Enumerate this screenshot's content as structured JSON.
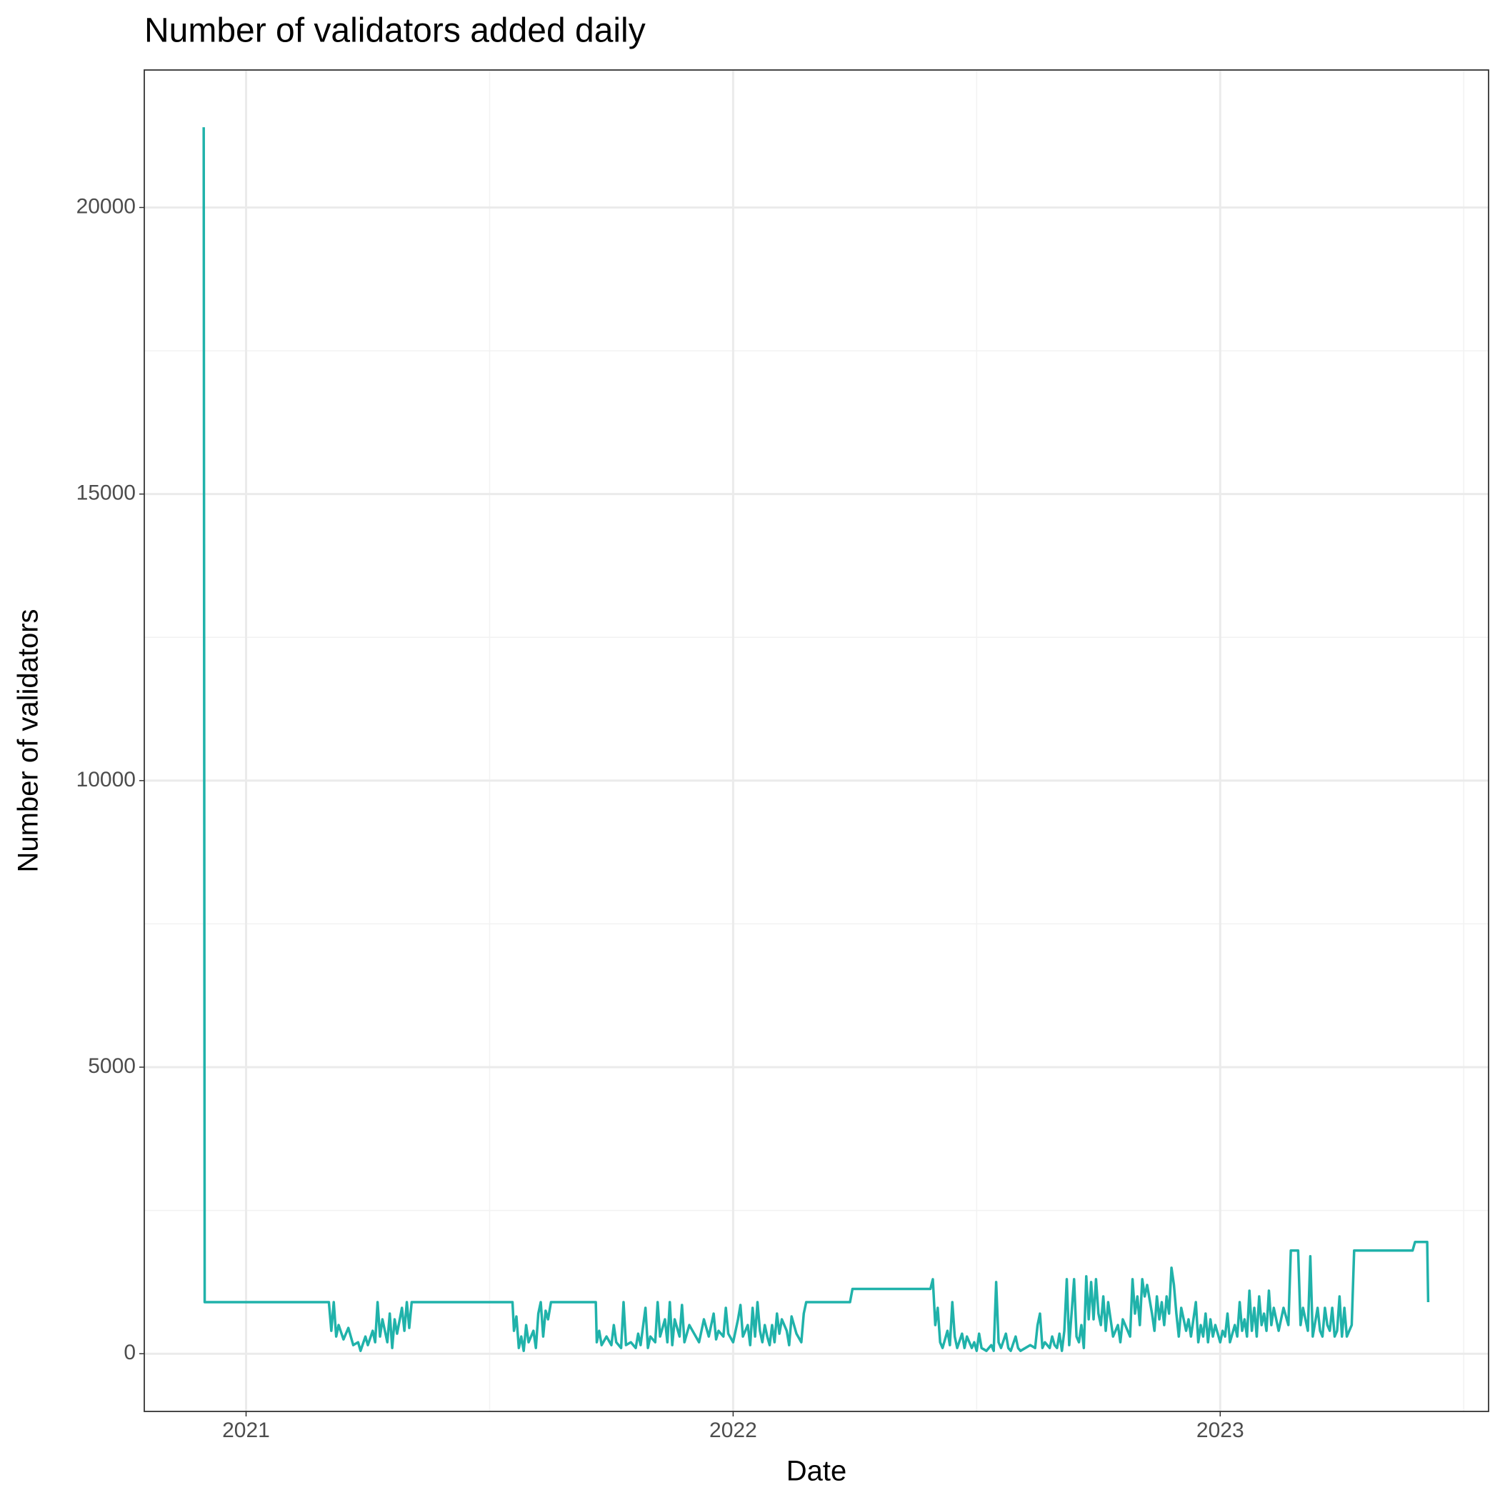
{
  "chart_data": {
    "type": "line",
    "title": "Number of validators added daily",
    "x_label": "Date",
    "y_label": "Number of validators",
    "color": "#20b2aa",
    "grid": true,
    "xlim": [
      2020.791,
      2023.551
    ],
    "xticks": [
      2021,
      2022,
      2023
    ],
    "ylim": [
      -1007,
      22399
    ],
    "yticks": [
      0,
      5000,
      10000,
      15000,
      20000
    ],
    "x": [
      2020.913,
      2020.915,
      2021.17,
      2021.175,
      2021.18,
      2021.185,
      2021.19,
      2021.2,
      2021.21,
      2021.22,
      2021.23,
      2021.235,
      2021.245,
      2021.25,
      2021.26,
      2021.265,
      2021.27,
      2021.275,
      2021.28,
      2021.29,
      2021.295,
      2021.3,
      2021.305,
      2021.31,
      2021.32,
      2021.325,
      2021.33,
      2021.335,
      2021.34,
      2021.547,
      2021.55,
      2021.555,
      2021.56,
      2021.565,
      2021.57,
      2021.575,
      2021.58,
      2021.59,
      2021.595,
      2021.6,
      2021.605,
      2021.61,
      2021.615,
      2021.62,
      2021.626,
      2021.718,
      2021.72,
      2021.725,
      2021.73,
      2021.74,
      2021.75,
      2021.755,
      2021.76,
      2021.77,
      2021.775,
      2021.78,
      2021.79,
      2021.8,
      2021.805,
      2021.81,
      2021.82,
      2021.825,
      2021.83,
      2021.84,
      2021.845,
      2021.85,
      2021.86,
      2021.865,
      2021.87,
      2021.875,
      2021.88,
      2021.89,
      2021.895,
      2021.9,
      2021.91,
      2021.92,
      2021.93,
      2021.94,
      2021.95,
      2021.96,
      2021.965,
      2021.97,
      2021.98,
      2021.985,
      2021.99,
      2022.0,
      2022.005,
      2022.01,
      2022.015,
      2022.02,
      2022.03,
      2022.035,
      2022.04,
      2022.045,
      2022.05,
      2022.055,
      2022.06,
      2022.065,
      2022.07,
      2022.075,
      2022.08,
      2022.085,
      2022.09,
      2022.095,
      2022.1,
      2022.11,
      2022.115,
      2022.12,
      2022.13,
      2022.14,
      2022.145,
      2022.15,
      2022.24,
      2022.245,
      2022.405,
      2022.41,
      2022.415,
      2022.42,
      2022.425,
      2022.43,
      2022.44,
      2022.445,
      2022.45,
      2022.455,
      2022.46,
      2022.47,
      2022.475,
      2022.48,
      2022.49,
      2022.495,
      2022.5,
      2022.505,
      2022.51,
      2022.52,
      2022.53,
      2022.535,
      2022.54,
      2022.545,
      2022.55,
      2022.56,
      2022.565,
      2022.57,
      2022.58,
      2022.585,
      2022.59,
      2022.6,
      2022.61,
      2022.62,
      2022.625,
      2022.63,
      2022.635,
      2022.64,
      2022.65,
      2022.655,
      2022.66,
      2022.665,
      2022.67,
      2022.675,
      2022.68,
      2022.685,
      2022.69,
      2022.7,
      2022.705,
      2022.71,
      2022.715,
      2022.72,
      2022.725,
      2022.73,
      2022.735,
      2022.74,
      2022.745,
      2022.75,
      2022.755,
      2022.76,
      2022.765,
      2022.77,
      2022.775,
      2022.78,
      2022.79,
      2022.795,
      2022.8,
      2022.81,
      2022.815,
      2022.82,
      2022.825,
      2022.83,
      2022.835,
      2022.84,
      2022.845,
      2022.85,
      2022.86,
      2022.865,
      2022.87,
      2022.875,
      2022.88,
      2022.885,
      2022.89,
      2022.895,
      2022.9,
      2022.905,
      2022.91,
      2022.915,
      2022.92,
      2022.93,
      2022.935,
      2022.94,
      2022.95,
      2022.955,
      2022.96,
      2022.965,
      2022.97,
      2022.975,
      2022.98,
      2022.985,
      2022.99,
      2023.0,
      2023.005,
      2023.01,
      2023.015,
      2023.02,
      2023.03,
      2023.035,
      2023.04,
      2023.045,
      2023.05,
      2023.055,
      2023.06,
      2023.065,
      2023.07,
      2023.075,
      2023.08,
      2023.085,
      2023.09,
      2023.095,
      2023.1,
      2023.105,
      2023.11,
      2023.12,
      2023.13,
      2023.14,
      2023.145,
      2023.16,
      2023.165,
      2023.17,
      2023.175,
      2023.18,
      2023.185,
      2023.19,
      2023.2,
      2023.205,
      2023.21,
      2023.215,
      2023.22,
      2023.225,
      2023.23,
      2023.235,
      2023.24,
      2023.245,
      2023.25,
      2023.255,
      2023.26,
      2023.265,
      2023.27,
      2023.275,
      2023.395,
      2023.4,
      2023.425,
      2023.427
    ],
    "values": [
      21400,
      900,
      900,
      400,
      900,
      300,
      500,
      250,
      450,
      150,
      200,
      50,
      300,
      150,
      400,
      200,
      900,
      300,
      600,
      200,
      700,
      100,
      600,
      350,
      800,
      400,
      900,
      450,
      900,
      900,
      400,
      650,
      100,
      300,
      50,
      500,
      200,
      400,
      100,
      700,
      900,
      300,
      750,
      600,
      900,
      900,
      200,
      400,
      150,
      300,
      150,
      500,
      200,
      100,
      900,
      150,
      200,
      100,
      350,
      150,
      800,
      100,
      300,
      200,
      900,
      300,
      600,
      200,
      900,
      150,
      600,
      300,
      850,
      200,
      500,
      350,
      200,
      600,
      300,
      700,
      250,
      400,
      300,
      800,
      350,
      200,
      400,
      600,
      850,
      300,
      500,
      150,
      800,
      300,
      900,
      400,
      200,
      500,
      300,
      150,
      500,
      200,
      700,
      350,
      600,
      400,
      150,
      650,
      350,
      200,
      700,
      900,
      900,
      1130,
      1130,
      1300,
      500,
      800,
      200,
      100,
      400,
      150,
      900,
      300,
      100,
      350,
      100,
      300,
      100,
      200,
      50,
      350,
      100,
      50,
      150,
      50,
      1250,
      200,
      100,
      350,
      100,
      50,
      300,
      100,
      50,
      100,
      150,
      100,
      500,
      700,
      100,
      200,
      100,
      300,
      150,
      100,
      350,
      50,
      400,
      1300,
      150,
      1300,
      300,
      200,
      500,
      100,
      1350,
      600,
      1250,
      600,
      1300,
      700,
      500,
      1000,
      400,
      900,
      600,
      300,
      500,
      200,
      600,
      400,
      300,
      1300,
      700,
      1000,
      500,
      1300,
      1000,
      1200,
      700,
      400,
      1000,
      600,
      900,
      500,
      1000,
      700,
      1500,
      1200,
      700,
      300,
      800,
      400,
      600,
      300,
      900,
      200,
      500,
      300,
      700,
      200,
      600,
      300,
      500,
      200,
      400,
      300,
      700,
      200,
      500,
      300,
      900,
      400,
      600,
      300,
      1100,
      400,
      800,
      300,
      1000,
      500,
      700,
      400,
      1100,
      500,
      800,
      400,
      800,
      500,
      1800,
      1800,
      500,
      800,
      600,
      400,
      1700,
      300,
      800,
      400,
      300,
      800,
      500,
      400,
      800,
      300,
      400,
      1000,
      300,
      800,
      300,
      400,
      500,
      1800,
      1800,
      1950,
      1950,
      900
    ]
  }
}
